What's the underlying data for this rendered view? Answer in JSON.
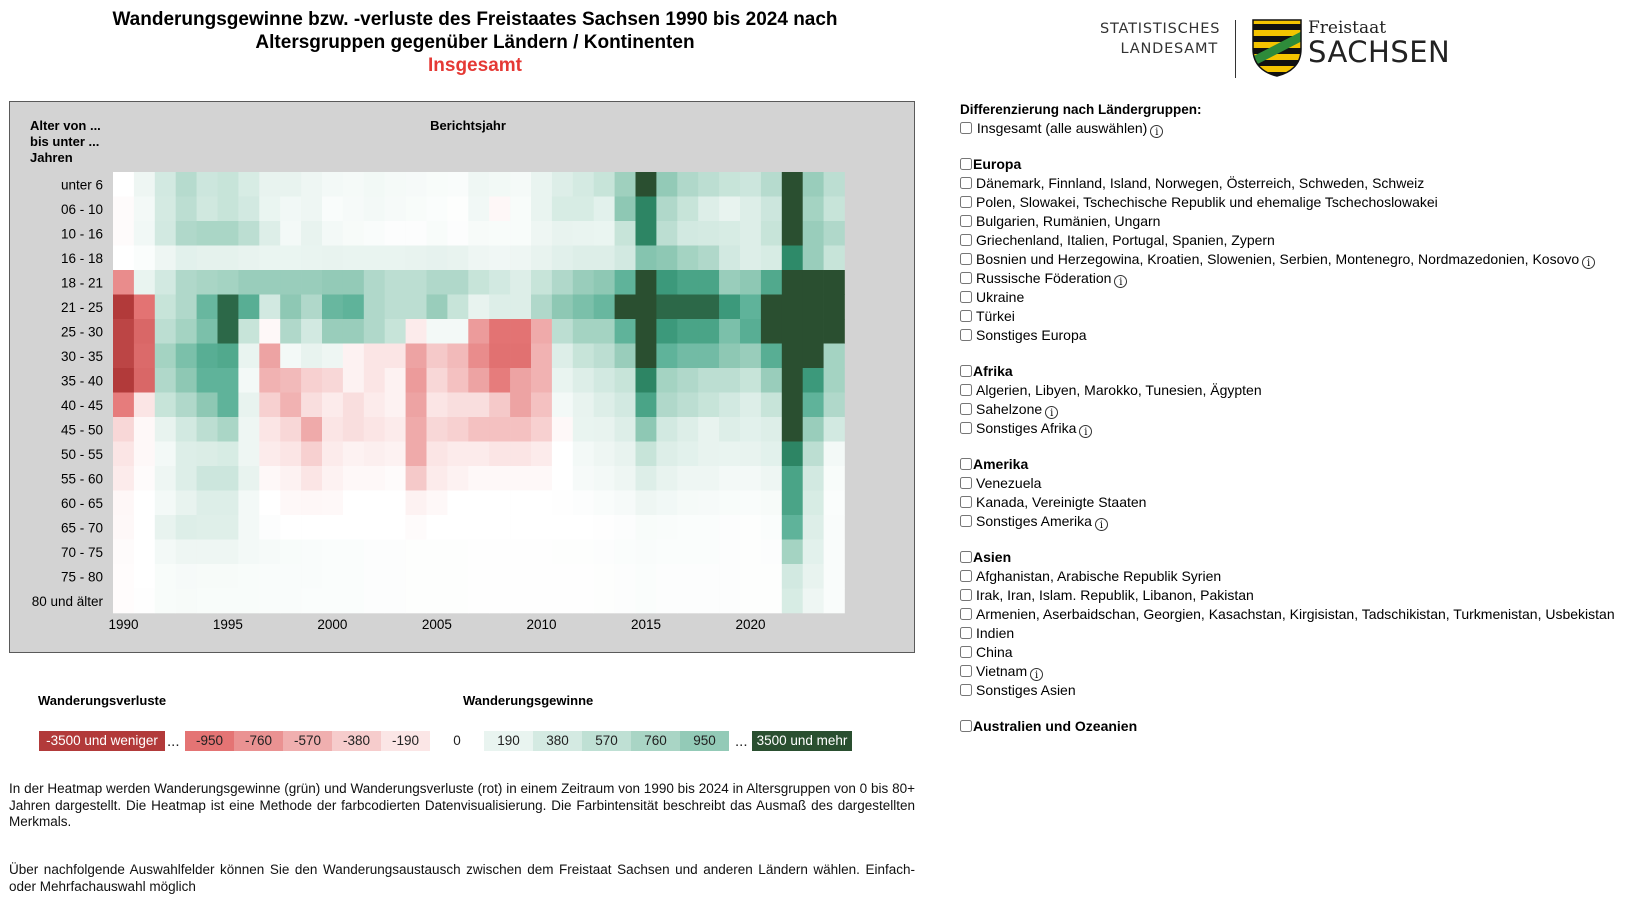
{
  "header": {
    "title_line1": "Wanderungsgewinne bzw. -verluste des Freistaates Sachsen 1990 bis 2024 nach",
    "title_line2": "Altersgruppen gegenüber Ländern / Kontinenten",
    "subtitle": "Insgesamt"
  },
  "logo": {
    "line1": "STATISTISCHES",
    "line2": "LANDESAMT",
    "state_small": "Freistaat",
    "state_big": "SACHSEN"
  },
  "chart_data": {
    "type": "heatmap",
    "title": "",
    "ylabel": "Alter von ... bis unter ... Jahren",
    "xlabel": "Berichtsjahr",
    "years": [
      1990,
      1991,
      1992,
      1993,
      1994,
      1995,
      1996,
      1997,
      1998,
      1999,
      2000,
      2001,
      2002,
      2003,
      2004,
      2005,
      2006,
      2007,
      2008,
      2009,
      2010,
      2011,
      2012,
      2013,
      2014,
      2015,
      2016,
      2017,
      2018,
      2019,
      2020,
      2021,
      2022,
      2023,
      2024
    ],
    "x_ticks": [
      "1990",
      "1995",
      "2000",
      "2005",
      "2010",
      "2015",
      "2020"
    ],
    "age_groups": [
      "unter 6",
      "06 - 10",
      "10 - 16",
      "16 - 18",
      "18 - 21",
      "21 - 25",
      "25 - 30",
      "30 - 35",
      "35 - 40",
      "40 - 45",
      "45 - 50",
      "50 - 55",
      "55 - 60",
      "60 - 65",
      "65 - 70",
      "70 - 75",
      "75 - 80",
      "80 und älter"
    ],
    "values": [
      [
        0,
        150,
        400,
        650,
        450,
        500,
        350,
        200,
        200,
        150,
        100,
        90,
        110,
        90,
        80,
        60,
        50,
        140,
        110,
        90,
        190,
        300,
        380,
        500,
        850,
        3600,
        950,
        700,
        600,
        500,
        450,
        650,
        3600,
        900,
        600
      ],
      [
        -30,
        100,
        380,
        600,
        420,
        500,
        400,
        180,
        120,
        150,
        50,
        80,
        100,
        80,
        60,
        40,
        20,
        120,
        -60,
        60,
        190,
        350,
        350,
        250,
        1000,
        2400,
        700,
        500,
        300,
        200,
        300,
        450,
        3500,
        800,
        500
      ],
      [
        -30,
        120,
        400,
        700,
        750,
        750,
        600,
        300,
        100,
        200,
        100,
        70,
        50,
        30,
        30,
        60,
        30,
        70,
        60,
        60,
        150,
        200,
        190,
        180,
        500,
        2400,
        600,
        400,
        380,
        350,
        300,
        500,
        3500,
        900,
        700
      ],
      [
        0,
        40,
        150,
        250,
        230,
        230,
        200,
        180,
        180,
        190,
        200,
        190,
        190,
        190,
        200,
        220,
        200,
        150,
        130,
        150,
        200,
        260,
        300,
        300,
        400,
        1100,
        1000,
        800,
        700,
        400,
        300,
        350,
        2300,
        900,
        500
      ],
      [
        -800,
        190,
        400,
        700,
        760,
        800,
        900,
        900,
        900,
        900,
        950,
        950,
        700,
        600,
        600,
        700,
        700,
        500,
        400,
        300,
        500,
        700,
        900,
        1000,
        1500,
        3600,
        2000,
        1800,
        1800,
        900,
        1000,
        1700,
        3600,
        3600,
        3600
      ],
      [
        -3500,
        -1000,
        500,
        700,
        1400,
        3000,
        1600,
        400,
        1000,
        700,
        1400,
        1500,
        700,
        600,
        600,
        900,
        500,
        200,
        300,
        300,
        700,
        1000,
        1200,
        1400,
        3500,
        3500,
        3000,
        3000,
        3000,
        2000,
        1500,
        3500,
        3500,
        3500,
        3500
      ],
      [
        -3000,
        -1500,
        600,
        800,
        1200,
        3000,
        500,
        -50,
        700,
        400,
        900,
        900,
        700,
        500,
        -150,
        100,
        100,
        -700,
        -1000,
        -1000,
        -600,
        600,
        800,
        800,
        1500,
        3600,
        2000,
        1800,
        1800,
        1200,
        1600,
        3500,
        3500,
        3500,
        3500
      ],
      [
        -3000,
        -1400,
        800,
        1200,
        1600,
        1700,
        190,
        -650,
        100,
        200,
        150,
        -100,
        -200,
        -200,
        -650,
        -400,
        -500,
        -800,
        -1100,
        -1100,
        -550,
        300,
        500,
        600,
        900,
        3600,
        1500,
        1300,
        1300,
        1000,
        900,
        1600,
        3600,
        3600,
        800
      ],
      [
        -3500,
        -1500,
        700,
        1000,
        1500,
        1500,
        100,
        -550,
        -500,
        -350,
        -300,
        -100,
        -200,
        -100,
        -700,
        -300,
        -450,
        -650,
        -900,
        -650,
        -550,
        190,
        300,
        400,
        500,
        2400,
        800,
        700,
        600,
        600,
        500,
        900,
        3500,
        2000,
        800
      ],
      [
        -900,
        -200,
        500,
        700,
        1000,
        1500,
        200,
        -350,
        -550,
        -250,
        -150,
        -250,
        -150,
        -100,
        -650,
        -200,
        -250,
        -250,
        -400,
        -650,
        -450,
        100,
        200,
        300,
        400,
        1800,
        700,
        600,
        500,
        400,
        300,
        500,
        3500,
        1500,
        700
      ],
      [
        -300,
        -50,
        200,
        400,
        600,
        750,
        150,
        -200,
        -300,
        -600,
        -200,
        -250,
        -200,
        -150,
        -600,
        -300,
        -350,
        -450,
        -450,
        -450,
        -350,
        -50,
        190,
        200,
        300,
        1000,
        400,
        300,
        200,
        300,
        250,
        300,
        3500,
        900,
        400
      ],
      [
        -200,
        -50,
        100,
        300,
        320,
        350,
        150,
        -150,
        -200,
        -350,
        -150,
        -100,
        -120,
        -100,
        -600,
        -200,
        -150,
        -150,
        -200,
        -200,
        -150,
        0,
        100,
        150,
        200,
        500,
        300,
        250,
        200,
        190,
        200,
        250,
        2400,
        600,
        100
      ],
      [
        -150,
        -30,
        150,
        300,
        450,
        450,
        200,
        -50,
        -100,
        -200,
        -100,
        -50,
        -50,
        -30,
        -400,
        -150,
        -100,
        -50,
        -50,
        -50,
        -50,
        0,
        80,
        100,
        150,
        300,
        200,
        150,
        150,
        100,
        100,
        150,
        1800,
        400,
        60
      ],
      [
        -60,
        0,
        100,
        200,
        300,
        300,
        100,
        0,
        -50,
        -60,
        -50,
        0,
        0,
        0,
        -100,
        -50,
        0,
        0,
        0,
        0,
        0,
        10,
        30,
        50,
        80,
        150,
        120,
        90,
        80,
        60,
        50,
        70,
        1800,
        350,
        40
      ],
      [
        -50,
        0,
        200,
        300,
        280,
        280,
        100,
        30,
        0,
        0,
        0,
        0,
        0,
        0,
        -30,
        0,
        0,
        0,
        0,
        0,
        0,
        0,
        0,
        10,
        30,
        60,
        50,
        40,
        40,
        30,
        20,
        40,
        1500,
        300,
        50
      ],
      [
        -30,
        0,
        100,
        150,
        150,
        150,
        100,
        80,
        60,
        50,
        40,
        40,
        30,
        30,
        20,
        20,
        20,
        10,
        10,
        10,
        10,
        20,
        20,
        30,
        40,
        50,
        40,
        40,
        40,
        30,
        20,
        30,
        800,
        250,
        50
      ],
      [
        -20,
        0,
        60,
        80,
        70,
        70,
        60,
        50,
        50,
        50,
        40,
        40,
        30,
        30,
        20,
        20,
        20,
        10,
        10,
        10,
        10,
        10,
        10,
        20,
        30,
        40,
        30,
        30,
        30,
        30,
        20,
        20,
        400,
        200,
        50
      ],
      [
        -20,
        10,
        60,
        70,
        60,
        60,
        60,
        50,
        50,
        40,
        40,
        40,
        30,
        30,
        20,
        20,
        20,
        10,
        10,
        10,
        10,
        10,
        10,
        20,
        30,
        40,
        30,
        30,
        30,
        30,
        20,
        20,
        350,
        150,
        50
      ]
    ]
  },
  "axis": {
    "age_header_l1": "Alter von ...",
    "age_header_l2": "bis unter ...",
    "age_header_l3": "Jahren",
    "year_header": "Berichtsjahr"
  },
  "legend": {
    "losses_title": "Wanderungsverluste",
    "gains_title": "Wanderungsgewinne",
    "items": [
      {
        "label": "-3500 und weniger",
        "color": "#b23a3a",
        "text_color": "#ffffff"
      },
      {
        "label": "-950",
        "color": "#e47474",
        "text_color": "#222222"
      },
      {
        "label": "-760",
        "color": "#ea9292",
        "text_color": "#222222"
      },
      {
        "label": "-570",
        "color": "#f0afaf",
        "text_color": "#222222"
      },
      {
        "label": "-380",
        "color": "#f6cccc",
        "text_color": "#222222"
      },
      {
        "label": "-190",
        "color": "#fbe6e6",
        "text_color": "#222222"
      },
      {
        "label": "0",
        "color": "#ffffff",
        "text_color": "#222222"
      },
      {
        "label": "190",
        "color": "#e9f4f0",
        "text_color": "#222222"
      },
      {
        "label": "380",
        "color": "#d4eae2",
        "text_color": "#222222"
      },
      {
        "label": "570",
        "color": "#bfe0d4",
        "text_color": "#222222"
      },
      {
        "label": "760",
        "color": "#a9d5c5",
        "text_color": "#222222"
      },
      {
        "label": "950",
        "color": "#93cab7",
        "text_color": "#222222"
      },
      {
        "label": "3500 und mehr",
        "color": "#2a4f30",
        "text_color": "#ffffff"
      }
    ],
    "ellipsis": "..."
  },
  "description": {
    "para1": "In der Heatmap werden Wanderungsgewinne (grün) und Wanderungsverluste (rot) in einem Zeitraum von 1990 bis 2024 in Altersgruppen von 0 bis 80+ Jahren dargestellt. Die Heatmap ist eine Methode der farbcodierten Datenvisualisierung. Die Farbintensität beschreibt das Ausmaß des dargestellten Merkmals.",
    "para2": "Über nachfolgende Auswahlfelder können Sie den Wanderungsaustausch zwischen dem Freistaat Sachsen und anderen Ländern wählen. Einfach- oder Mehrfachauswahl möglich"
  },
  "filters": {
    "heading": "Differenzierung nach Ländergruppen:",
    "all_label": "Insgesamt (alle auswählen)",
    "groups": [
      {
        "label": "Europa",
        "items": [
          {
            "label": "Dänemark, Finnland, Island, Norwegen, Österreich, Schweden, Schweiz",
            "info": false
          },
          {
            "label": "Polen, Slowakei, Tschechische Republik und ehemalige Tschechoslowakei",
            "info": false
          },
          {
            "label": "Bulgarien, Rumänien, Ungarn",
            "info": false
          },
          {
            "label": "Griechenland, Italien, Portugal, Spanien, Zypern",
            "info": false
          },
          {
            "label": "Bosnien und Herzegowina, Kroatien, Slowenien, Serbien, Montenegro, Nordmazedonien, Kosovo",
            "info": true
          },
          {
            "label": "Russische Föderation",
            "info": true
          },
          {
            "label": "Ukraine",
            "info": false
          },
          {
            "label": "Türkei",
            "info": false
          },
          {
            "label": "Sonstiges Europa",
            "info": false
          }
        ]
      },
      {
        "label": "Afrika",
        "items": [
          {
            "label": "Algerien, Libyen, Marokko, Tunesien, Ägypten",
            "info": false
          },
          {
            "label": "Sahelzone",
            "info": true
          },
          {
            "label": "Sonstiges Afrika",
            "info": true
          }
        ]
      },
      {
        "label": "Amerika",
        "items": [
          {
            "label": "Venezuela",
            "info": false
          },
          {
            "label": "Kanada, Vereinigte Staaten",
            "info": false
          },
          {
            "label": "Sonstiges Amerika",
            "info": true
          }
        ]
      },
      {
        "label": "Asien",
        "items": [
          {
            "label": "Afghanistan, Arabische Republik Syrien",
            "info": false
          },
          {
            "label": "Irak, Iran, Islam. Republik, Libanon, Pakistan",
            "info": false
          },
          {
            "label": "Armenien, Aserbaidschan, Georgien, Kasachstan, Kirgisistan, Tadschikistan, Turkmenistan, Usbekistan",
            "info": false
          },
          {
            "label": "Indien",
            "info": false
          },
          {
            "label": "China",
            "info": false
          },
          {
            "label": "Vietnam",
            "info": true
          },
          {
            "label": "Sonstiges Asien",
            "info": false
          }
        ]
      },
      {
        "label": "Australien und Ozeanien",
        "items": []
      }
    ],
    "info_glyph": "i"
  }
}
